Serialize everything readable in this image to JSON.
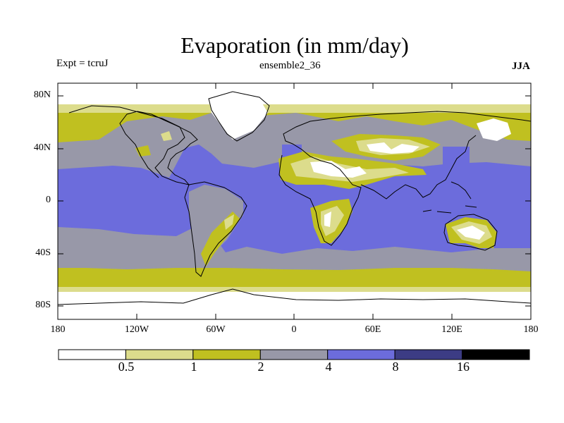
{
  "header": {
    "title": "Evaporation (in mm/day)",
    "experiment": "Expt = tcruJ",
    "ensemble": "ensemble2_36",
    "season": "JJA"
  },
  "map": {
    "projection": "cylindrical equidistant",
    "lat_ticks": [
      "80N",
      "40N",
      "0",
      "40S",
      "80S"
    ],
    "lon_ticks": [
      "180",
      "120W",
      "60W",
      "0",
      "60E",
      "120E",
      "180"
    ],
    "lat_range": [
      -90,
      90
    ],
    "lon_range": [
      -180,
      180
    ]
  },
  "colorbar": {
    "colors": [
      "#ffffff",
      "#dcdc8c",
      "#c0c020",
      "#9898a8",
      "#6c6cdc",
      "#3c3c84",
      "#000000"
    ],
    "labels": [
      "0.5",
      "1",
      "2",
      "4",
      "8",
      "16"
    ]
  }
}
